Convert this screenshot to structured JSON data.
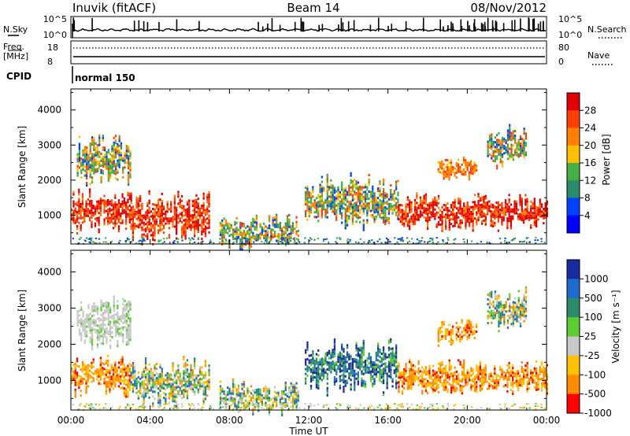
{
  "header": {
    "station": "Inuvik (fitACF)",
    "beam": "Beam 14",
    "date": "08/Nov/2012"
  },
  "noise_panel": {
    "left_label": "N.Sky",
    "right_label": "N.Search",
    "left_ticks": [
      "10^5",
      "10^0"
    ],
    "right_ticks": [
      "10^5",
      "10^0"
    ]
  },
  "freq_panel": {
    "left_label_1": "Freq.",
    "left_label_2": "[MHz]",
    "right_label": "Nave",
    "left_ticks": [
      "18",
      "8"
    ],
    "right_ticks": [
      "80",
      "0"
    ]
  },
  "cpid_panel": {
    "label": "CPID",
    "value": "normal 150"
  },
  "power_panel": {
    "ylabel": "Slant Range [km]",
    "yticks": [
      "1000",
      "2000",
      "3000",
      "4000"
    ],
    "colorbar_label": "Power [dB]",
    "colorbar_ticks": [
      "28",
      "24",
      "20",
      "16",
      "12",
      "8",
      "4"
    ],
    "colors": [
      "#e00000",
      "#ff4000",
      "#ff7f00",
      "#ffbf00",
      "#44b044",
      "#2a8a6a",
      "#0040ff",
      "#0000ff"
    ]
  },
  "velocity_panel": {
    "ylabel": "Slant Range [km]",
    "yticks": [
      "1000",
      "2000",
      "3000",
      "4000"
    ],
    "colorbar_label": "Velocity [m s⁻¹]",
    "colorbar_ticks": [
      "1000",
      "500",
      "100",
      "25",
      "-25",
      "-100",
      "-500",
      "-1000"
    ],
    "colors": [
      "#1a2aa0",
      "#1e6bd0",
      "#2a8a6a",
      "#5ccc30",
      "#c8c8c8",
      "#ffc000",
      "#ff8c00",
      "#ff0000"
    ]
  },
  "x_axis": {
    "label": "Time UT",
    "ticks": [
      "00:00",
      "04:00",
      "08:00",
      "12:00",
      "16:00",
      "20:00",
      "00:00"
    ]
  },
  "chart_data": [
    {
      "type": "heatmap",
      "title": "Power",
      "xlabel": "Time UT",
      "ylabel": "Slant Range [km]",
      "xlim": [
        0,
        24
      ],
      "ylim": [
        180,
        4600
      ],
      "zlabel": "Power [dB]",
      "zticks": [
        4,
        8,
        12,
        16,
        20,
        24,
        28
      ],
      "regions": [
        {
          "t": [
            0.0,
            3.0
          ],
          "r": [
            700,
            1600
          ],
          "level": "high"
        },
        {
          "t": [
            0.3,
            3.0
          ],
          "r": [
            2000,
            3200
          ],
          "level": "mixed"
        },
        {
          "t": [
            3.0,
            7.0
          ],
          "r": [
            400,
            1500
          ],
          "level": "high"
        },
        {
          "t": [
            7.5,
            11.5
          ],
          "r": [
            200,
            900
          ],
          "level": "mixed"
        },
        {
          "t": [
            11.8,
            16.5
          ],
          "r": [
            800,
            2000
          ],
          "level": "mixed"
        },
        {
          "t": [
            16.5,
            24.0
          ],
          "r": [
            700,
            1500
          ],
          "level": "high"
        },
        {
          "t": [
            18.5,
            20.5
          ],
          "r": [
            2100,
            2600
          ],
          "level": "mid"
        },
        {
          "t": [
            21.0,
            23.0
          ],
          "r": [
            2500,
            3400
          ],
          "level": "mixed"
        }
      ]
    },
    {
      "type": "heatmap",
      "title": "Velocity",
      "xlabel": "Time UT",
      "ylabel": "Slant Range [km]",
      "xlim": [
        0,
        24
      ],
      "ylim": [
        180,
        4600
      ],
      "zlabel": "Velocity [m s⁻¹]",
      "zticks": [
        -1000,
        -500,
        -100,
        -25,
        25,
        100,
        500,
        1000
      ],
      "regions": [
        {
          "t": [
            0.0,
            3.0
          ],
          "r": [
            700,
            1600
          ],
          "level": "negative"
        },
        {
          "t": [
            0.3,
            3.0
          ],
          "r": [
            2000,
            3200
          ],
          "level": "near-zero"
        },
        {
          "t": [
            3.0,
            7.0
          ],
          "r": [
            400,
            1500
          ],
          "level": "mixed"
        },
        {
          "t": [
            7.5,
            11.5
          ],
          "r": [
            200,
            900
          ],
          "level": "mixed"
        },
        {
          "t": [
            11.8,
            16.5
          ],
          "r": [
            800,
            2000
          ],
          "level": "positive"
        },
        {
          "t": [
            16.5,
            24.0
          ],
          "r": [
            700,
            1500
          ],
          "level": "negative"
        },
        {
          "t": [
            18.5,
            20.5
          ],
          "r": [
            2100,
            2600
          ],
          "level": "negative"
        },
        {
          "t": [
            21.0,
            23.0
          ],
          "r": [
            2500,
            3400
          ],
          "level": "mixed"
        }
      ]
    }
  ]
}
